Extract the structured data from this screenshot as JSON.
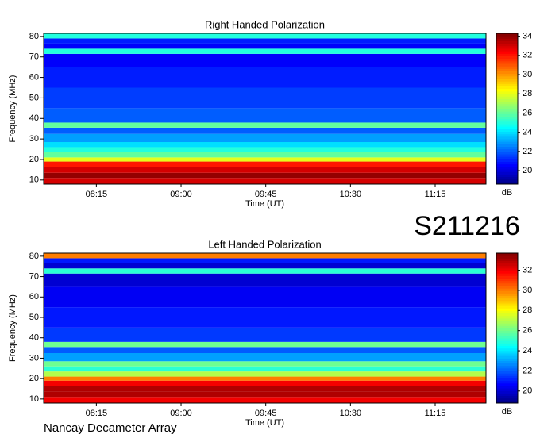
{
  "chart_data": [
    {
      "type": "heatmap",
      "title": "Right Handed Polarization",
      "xlabel": "Time (UT)",
      "ylabel": "Frequency (MHz)",
      "colorbar_label": "dB",
      "xlim": [
        467,
        702
      ],
      "xticks": [
        {
          "value": 495,
          "label": "08:15"
        },
        {
          "value": 540,
          "label": "09:00"
        },
        {
          "value": 585,
          "label": "09:45"
        },
        {
          "value": 630,
          "label": "10:30"
        },
        {
          "value": 675,
          "label": "11:15"
        }
      ],
      "ylim": [
        8,
        81.5
      ],
      "yticks": [
        10,
        20,
        30,
        40,
        50,
        60,
        70,
        80
      ],
      "clim": [
        18.6,
        34.3
      ],
      "cticks": [
        20,
        22,
        24,
        26,
        28,
        30,
        32,
        34
      ],
      "y": [
        10,
        12,
        15,
        18,
        20,
        22,
        25,
        27,
        30,
        35,
        36,
        40,
        50,
        60,
        70,
        73,
        75,
        78,
        80
      ],
      "z": [
        33,
        34,
        33,
        32,
        28,
        26,
        25,
        24,
        23,
        22,
        26,
        22,
        21.5,
        21,
        20.5,
        25,
        20.5,
        21,
        25
      ]
    },
    {
      "type": "heatmap",
      "title": "Left Handed Polarization",
      "xlabel": "Time (UT)",
      "ylabel": "Frequency (MHz)",
      "colorbar_label": "dB",
      "xlim": [
        467,
        702
      ],
      "xticks": [
        {
          "value": 495,
          "label": "08:15"
        },
        {
          "value": 540,
          "label": "09:00"
        },
        {
          "value": 585,
          "label": "09:45"
        },
        {
          "value": 630,
          "label": "10:30"
        },
        {
          "value": 675,
          "label": "11:15"
        }
      ],
      "ylim": [
        8,
        81.5
      ],
      "yticks": [
        10,
        20,
        30,
        40,
        50,
        60,
        70,
        80
      ],
      "clim": [
        18.8,
        33.7
      ],
      "cticks": [
        20,
        22,
        24,
        26,
        28,
        30,
        32
      ],
      "y": [
        10,
        12,
        15,
        18,
        20,
        22,
        25,
        27,
        30,
        35,
        36,
        40,
        50,
        60,
        70,
        73,
        75,
        78,
        80
      ],
      "z": [
        32,
        33,
        33,
        32,
        30,
        27,
        25,
        26,
        23,
        22,
        26,
        21.5,
        21,
        20.5,
        20,
        25,
        20,
        21,
        30
      ]
    }
  ],
  "label": "S211216",
  "footer": "Nancay Decameter Array"
}
